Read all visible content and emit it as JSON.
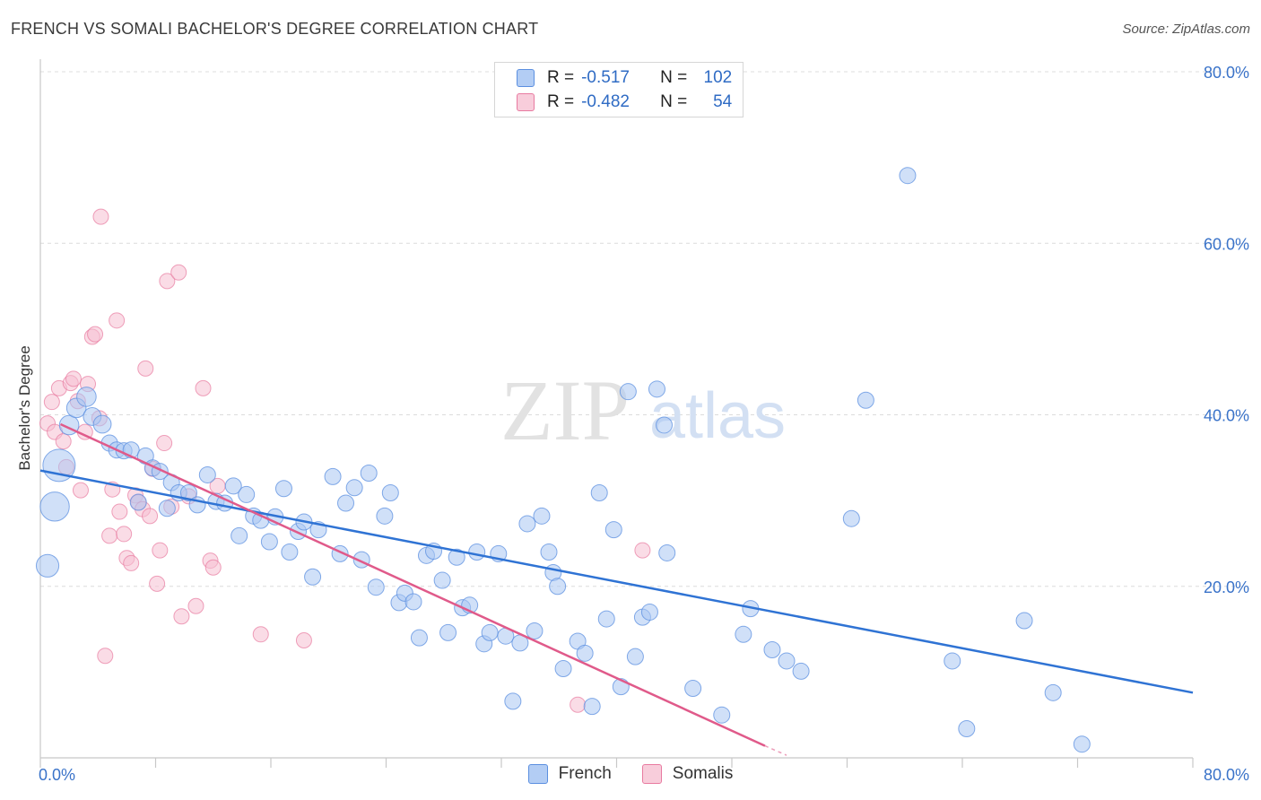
{
  "title": "FRENCH VS SOMALI BACHELOR'S DEGREE CORRELATION CHART",
  "source": "Source: ZipAtlas.com",
  "watermark": {
    "zip": "ZIP",
    "atlas": "atlas"
  },
  "legend": {
    "french": {
      "r_label": "R =",
      "r_value": "-0.517",
      "n_label": "N =",
      "n_value": "102"
    },
    "somalis": {
      "r_label": "R =",
      "r_value": "-0.482",
      "n_label": "N =",
      "n_value": "54"
    }
  },
  "colors": {
    "french": "#5b8fe0",
    "french_fill": "#a9c6f2",
    "french_line": "#2f73d4",
    "somalis": "#e87aa0",
    "somalis_fill": "#f6c0d2",
    "somalis_line": "#e05a8a",
    "tick": "#3a73c9"
  },
  "chart_data": {
    "type": "scatter",
    "title": "FRENCH VS SOMALI BACHELOR'S DEGREE CORRELATION CHART",
    "xlabel": "",
    "ylabel": "Bachelor's Degree",
    "xlim": [
      0,
      80
    ],
    "ylim": [
      0,
      80
    ],
    "x_tick_labels": [
      "0.0%",
      "80.0%"
    ],
    "y_tick_labels": [
      "20.0%",
      "40.0%",
      "60.0%",
      "80.0%"
    ],
    "y_ticks": [
      20,
      40,
      60,
      80
    ],
    "grid": true,
    "series": [
      {
        "name": "French",
        "trendline": [
          [
            0,
            33.5
          ],
          [
            80,
            7.6
          ]
        ],
        "points": [
          [
            0.5,
            22.4
          ],
          [
            1,
            29.3
          ],
          [
            1.3,
            34.1
          ],
          [
            2,
            38.8
          ],
          [
            2.5,
            40.8
          ],
          [
            3.2,
            42.1
          ],
          [
            3.6,
            39.8
          ],
          [
            4.3,
            38.9
          ],
          [
            4.8,
            36.7
          ],
          [
            5.3,
            35.9
          ],
          [
            5.8,
            35.8
          ],
          [
            6.3,
            35.9
          ],
          [
            6.8,
            29.8
          ],
          [
            7.3,
            35.2
          ],
          [
            7.8,
            33.8
          ],
          [
            8.3,
            33.4
          ],
          [
            8.8,
            29.1
          ],
          [
            9.1,
            32.1
          ],
          [
            9.6,
            30.9
          ],
          [
            10.3,
            30.9
          ],
          [
            10.9,
            29.5
          ],
          [
            11.6,
            33.0
          ],
          [
            12.2,
            29.9
          ],
          [
            12.8,
            29.7
          ],
          [
            13.4,
            31.7
          ],
          [
            13.8,
            25.9
          ],
          [
            14.3,
            30.7
          ],
          [
            14.8,
            28.2
          ],
          [
            15.3,
            27.7
          ],
          [
            15.9,
            25.2
          ],
          [
            16.3,
            28.1
          ],
          [
            16.9,
            31.4
          ],
          [
            17.3,
            24.0
          ],
          [
            17.9,
            26.4
          ],
          [
            18.3,
            27.5
          ],
          [
            18.9,
            21.1
          ],
          [
            19.3,
            26.6
          ],
          [
            20.3,
            32.8
          ],
          [
            20.8,
            23.8
          ],
          [
            21.2,
            29.7
          ],
          [
            21.8,
            31.5
          ],
          [
            22.3,
            23.1
          ],
          [
            22.8,
            33.2
          ],
          [
            23.3,
            19.9
          ],
          [
            23.9,
            28.2
          ],
          [
            24.3,
            30.9
          ],
          [
            24.9,
            18.1
          ],
          [
            25.3,
            19.2
          ],
          [
            25.9,
            18.2
          ],
          [
            26.3,
            14.0
          ],
          [
            26.8,
            23.6
          ],
          [
            27.3,
            24.1
          ],
          [
            27.9,
            20.7
          ],
          [
            28.3,
            14.6
          ],
          [
            28.9,
            23.4
          ],
          [
            29.3,
            17.5
          ],
          [
            29.8,
            17.8
          ],
          [
            30.3,
            24.0
          ],
          [
            30.8,
            13.3
          ],
          [
            31.2,
            14.6
          ],
          [
            31.8,
            23.8
          ],
          [
            32.3,
            14.2
          ],
          [
            32.8,
            6.6
          ],
          [
            33.3,
            13.4
          ],
          [
            33.8,
            27.3
          ],
          [
            34.3,
            14.8
          ],
          [
            34.8,
            28.2
          ],
          [
            35.3,
            24.0
          ],
          [
            35.6,
            21.6
          ],
          [
            35.9,
            20.0
          ],
          [
            36.3,
            10.4
          ],
          [
            37.3,
            13.6
          ],
          [
            37.8,
            12.2
          ],
          [
            38.3,
            6.0
          ],
          [
            38.8,
            30.9
          ],
          [
            39.3,
            16.2
          ],
          [
            39.8,
            26.6
          ],
          [
            40.3,
            8.3
          ],
          [
            40.8,
            42.7
          ],
          [
            41.3,
            11.8
          ],
          [
            41.8,
            16.4
          ],
          [
            42.3,
            17.0
          ],
          [
            42.8,
            43.0
          ],
          [
            43.3,
            38.8
          ],
          [
            43.5,
            23.9
          ],
          [
            45.3,
            8.1
          ],
          [
            47.3,
            5.0
          ],
          [
            48.8,
            14.4
          ],
          [
            49.3,
            17.4
          ],
          [
            50.8,
            12.6
          ],
          [
            51.8,
            11.3
          ],
          [
            52.8,
            10.1
          ],
          [
            56.3,
            27.9
          ],
          [
            57.3,
            41.7
          ],
          [
            60.2,
            67.9
          ],
          [
            63.3,
            11.3
          ],
          [
            64.3,
            3.4
          ],
          [
            68.3,
            16.0
          ],
          [
            70.3,
            7.6
          ],
          [
            72.3,
            1.6
          ]
        ],
        "sizes": [
          14,
          18,
          20,
          12,
          12,
          12,
          11,
          11,
          10,
          10,
          10,
          10,
          10,
          10,
          10,
          10,
          10,
          10,
          10,
          10,
          10,
          10,
          10,
          10,
          10,
          10,
          10,
          10,
          10,
          10,
          10,
          10,
          10,
          10,
          10,
          10,
          10,
          10,
          10,
          10,
          10,
          10,
          10,
          10,
          10,
          10,
          10,
          10,
          10,
          10,
          10,
          10,
          10,
          10,
          10,
          10,
          10,
          10,
          10,
          10,
          10,
          10,
          10,
          10,
          10,
          10,
          10,
          10,
          10,
          10,
          10,
          10,
          10,
          10,
          10,
          10,
          10,
          10,
          10,
          10,
          10,
          10,
          10,
          10,
          10,
          10,
          10,
          10,
          10,
          10,
          10,
          10,
          10,
          10,
          10,
          10,
          10,
          10,
          10,
          10
        ]
      },
      {
        "name": "Somalis",
        "trendline": [
          [
            1.4,
            38.9
          ],
          [
            50.3,
            1.4
          ]
        ],
        "trendline_dashed": [
          [
            50.3,
            1.4
          ],
          [
            51.8,
            0.3
          ]
        ],
        "points": [
          [
            0.5,
            39.0
          ],
          [
            0.8,
            41.5
          ],
          [
            1.0,
            38.0
          ],
          [
            1.3,
            43.1
          ],
          [
            1.6,
            36.9
          ],
          [
            1.8,
            33.9
          ],
          [
            2.1,
            43.7
          ],
          [
            2.3,
            44.2
          ],
          [
            2.6,
            41.6
          ],
          [
            2.8,
            31.2
          ],
          [
            3.1,
            38.0
          ],
          [
            3.3,
            43.6
          ],
          [
            3.6,
            49.1
          ],
          [
            3.8,
            49.4
          ],
          [
            4.1,
            39.6
          ],
          [
            4.2,
            63.1
          ],
          [
            4.5,
            11.9
          ],
          [
            4.8,
            25.9
          ],
          [
            5.0,
            31.3
          ],
          [
            5.3,
            51.0
          ],
          [
            5.5,
            28.7
          ],
          [
            5.8,
            26.1
          ],
          [
            6.0,
            23.3
          ],
          [
            6.3,
            22.7
          ],
          [
            6.6,
            30.6
          ],
          [
            6.8,
            29.8
          ],
          [
            7.1,
            29.0
          ],
          [
            7.3,
            45.4
          ],
          [
            7.6,
            28.2
          ],
          [
            7.8,
            33.7
          ],
          [
            8.1,
            20.3
          ],
          [
            8.3,
            24.2
          ],
          [
            8.6,
            36.7
          ],
          [
            8.8,
            55.6
          ],
          [
            9.1,
            29.3
          ],
          [
            9.6,
            56.6
          ],
          [
            9.8,
            16.5
          ],
          [
            10.3,
            30.5
          ],
          [
            10.8,
            17.7
          ],
          [
            11.3,
            43.1
          ],
          [
            11.8,
            23.0
          ],
          [
            12.0,
            22.2
          ],
          [
            12.3,
            31.7
          ],
          [
            15.3,
            14.4
          ],
          [
            18.3,
            13.7
          ],
          [
            37.3,
            6.2
          ],
          [
            41.8,
            24.2
          ]
        ]
      }
    ]
  }
}
